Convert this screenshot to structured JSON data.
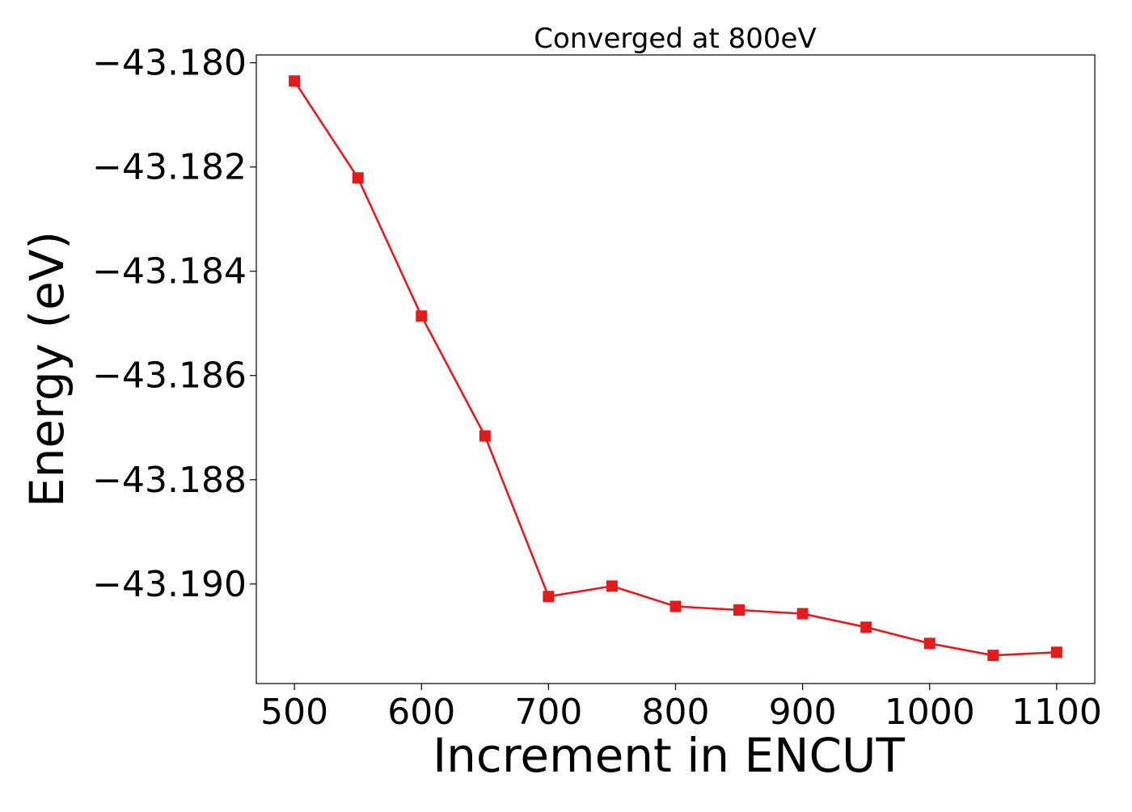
{
  "chart_data": {
    "type": "line",
    "title": "Converged at 800eV",
    "xlabel": "Increment in ENCUT",
    "ylabel": "Energy (eV)",
    "x": [
      500,
      550,
      600,
      650,
      700,
      750,
      800,
      850,
      900,
      950,
      1000,
      1050,
      1100
    ],
    "series": [
      {
        "values": [
          -43.18035,
          -43.18221,
          -43.18486,
          -43.18716,
          -43.19024,
          -43.19004,
          -43.19043,
          -43.1905,
          -43.19057,
          -43.19083,
          -43.19114,
          -43.19137,
          -43.19131
        ],
        "color": "#e41a1c",
        "marker": "square"
      }
    ],
    "xlim": [
      470,
      1130
    ],
    "ylim": [
      -43.19191,
      -43.17985
    ],
    "xticks": [
      500,
      600,
      700,
      800,
      900,
      1000,
      1100
    ],
    "xtick_labels": [
      "500",
      "600",
      "700",
      "800",
      "900",
      "1000",
      "1100"
    ],
    "yticks": [
      -43.18,
      -43.182,
      -43.184,
      -43.186,
      -43.188,
      -43.19
    ],
    "ytick_labels": [
      "−43.180",
      "−43.182",
      "−43.184",
      "−43.186",
      "−43.188",
      "−43.190"
    ],
    "grid": false,
    "legend": "none"
  }
}
